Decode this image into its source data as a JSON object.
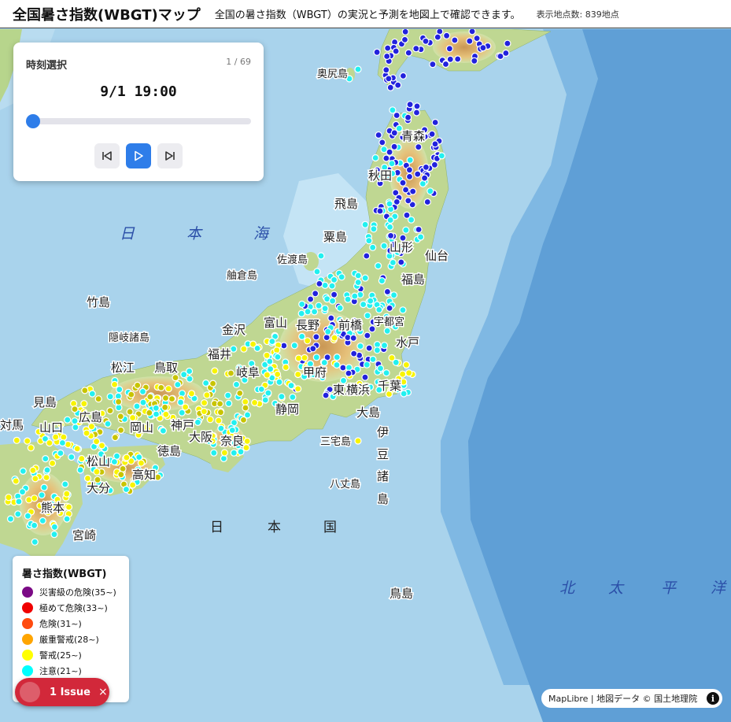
{
  "header": {
    "title": "全国暑さ指数(WBGT)マップ",
    "description": "全国の暑さ指数（WBGT）の実況と予測を地図上で確認できます。",
    "point_count": "表示地点数: 839地点"
  },
  "time_panel": {
    "title": "時刻選択",
    "counter": "1 / 69",
    "time": "9/1 19:00",
    "slider_value": 0.0,
    "buttons": {
      "prev": "skip-back-icon",
      "play": "play-icon",
      "next": "skip-forward-icon"
    }
  },
  "legend": {
    "title": "暑さ指数(WBGT)",
    "items": [
      {
        "label": "災害級の危険(35~)",
        "color": "#7b0a85"
      },
      {
        "label": "極めて危険(33~)",
        "color": "#f00000"
      },
      {
        "label": "危険(31~)",
        "color": "#ff4b0f"
      },
      {
        "label": "厳重警戒(28~)",
        "color": "#ffa500"
      },
      {
        "label": "警戒(25~)",
        "color": "#ffff00"
      },
      {
        "label": "注意(21~)",
        "color": "#00ffff"
      }
    ]
  },
  "issue_badge": {
    "label": "1 Issue",
    "close": "×"
  },
  "attribution": {
    "text": "MapLibre | 地図データ © 国土地理院",
    "icon": "info-icon"
  },
  "map_labels": {
    "seas": [
      "日",
      "本",
      "海",
      "北",
      "太",
      "平",
      "洋"
    ],
    "land_words": [
      "日",
      "本",
      "国"
    ],
    "places": [
      "奥尻島",
      "青森",
      "秋田",
      "飛島",
      "粟島",
      "佐渡島",
      "山形",
      "仙台",
      "福島",
      "舳倉島",
      "竹島",
      "隠岐諸島",
      "金沢",
      "富山",
      "長野",
      "前橋",
      "宇都宮",
      "水戸",
      "福井",
      "岐阜",
      "甲府",
      "東京",
      "千葉",
      "松江",
      "鳥取",
      "見島",
      "山口",
      "広島",
      "岡山",
      "神戸",
      "大阪",
      "奈良",
      "静岡",
      "横浜",
      "大島",
      "三宅島",
      "八丈島",
      "伊",
      "豆",
      "諸",
      "島",
      "松山",
      "高知",
      "大分",
      "熊本",
      "宮崎",
      "対馬",
      "鳥島",
      "徳島"
    ]
  },
  "colors": {
    "dot_blue": "#2222dd",
    "dot_cyan": "#22f0f0",
    "dot_yellow": "#f8f400",
    "dot_olive": "#c8c400",
    "sea": "#a9d3ec",
    "deep_sea": "#5aa2d8"
  }
}
